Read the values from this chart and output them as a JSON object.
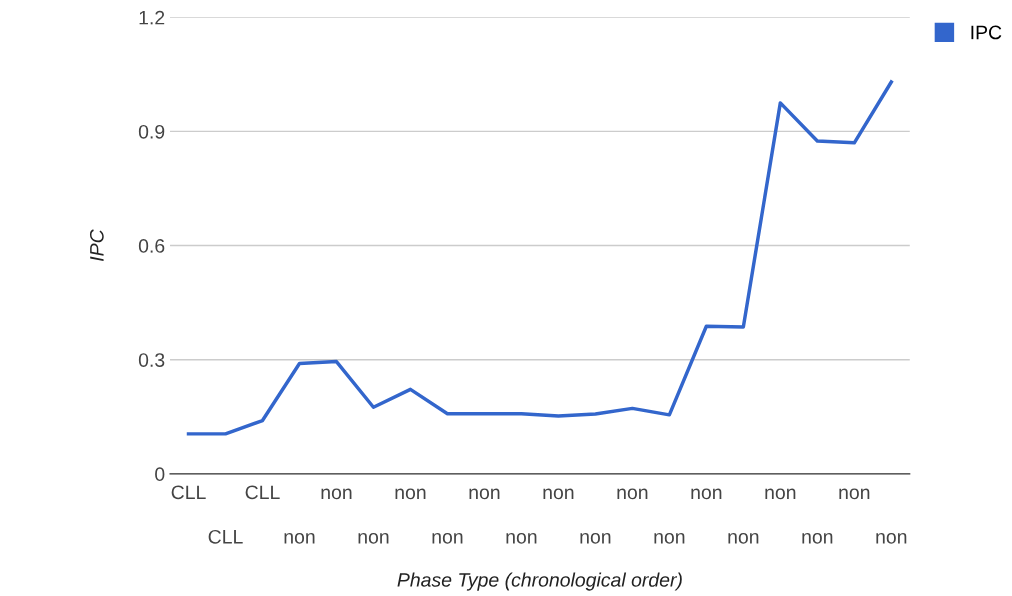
{
  "chart_data": {
    "type": "line",
    "xlabel": "Phase Type (chronological order)",
    "ylabel": "IPC",
    "categories": [
      "CLL",
      "CLL",
      "CLL",
      "non",
      "non",
      "non",
      "non",
      "non",
      "non",
      "non",
      "non",
      "non",
      "non",
      "non",
      "non",
      "non",
      "non",
      "non",
      "non",
      "non"
    ],
    "series": [
      {
        "name": "IPC",
        "color": "#3366cc",
        "values": [
          0.105,
          0.105,
          0.14,
          0.29,
          0.295,
          0.175,
          0.222,
          0.158,
          0.158,
          0.158,
          0.152,
          0.157,
          0.172,
          0.155,
          0.388,
          0.386,
          0.975,
          0.875,
          0.87,
          1.03
        ]
      }
    ],
    "ylim": [
      0,
      1.2
    ],
    "yticks": [
      0,
      0.3,
      0.6,
      0.9,
      1.2
    ],
    "grid": "y",
    "legend": "top right",
    "marker": "none",
    "line_style": "solid"
  }
}
